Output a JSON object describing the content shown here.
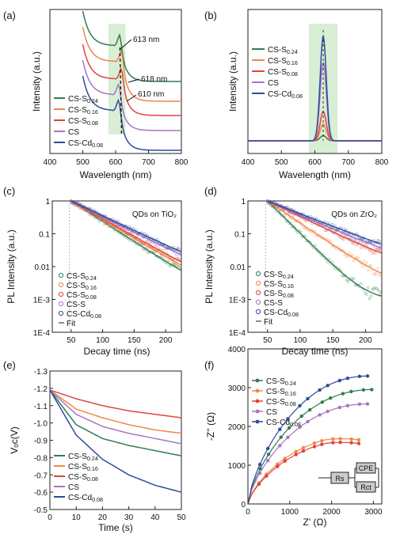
{
  "panels": {
    "a": {
      "letter": "(a)",
      "xlabel": "Wavelength (nm)",
      "ylabel": "Intensity (a.u.)"
    },
    "b": {
      "letter": "(b)",
      "xlabel": "Wavelength (nm)",
      "ylabel": "Intensity (a.u.)"
    },
    "c": {
      "letter": "(c)",
      "xlabel": "Decay time (ns)",
      "ylabel": "PL Intensity (a.u.)",
      "note": "QDs on TiO₂"
    },
    "d": {
      "letter": "(d)",
      "xlabel": "Decay time (ns)",
      "ylabel": "PL Intensity (a.u.)",
      "note": "QDs on ZrO₂"
    },
    "e": {
      "letter": "(e)",
      "xlabel": "Time (s)",
      "ylabel": "Vₒᴄ(V)"
    },
    "f": {
      "letter": "(f)",
      "xlabel": "Z' (Ω)",
      "ylabel": "-Z'' (Ω)"
    }
  },
  "colors": {
    "CS-S0.24": "#2e7d4f",
    "CS-S0.16": "#f0874a",
    "CS-S0.08": "#e0443a",
    "CS": "#a676c2",
    "CS-Cd0.08": "#2d4c9c",
    "CS-S": "#a676c2"
  },
  "chart_data": [
    {
      "panel": "a",
      "type": "line",
      "xlabel": "Wavelength (nm)",
      "ylabel": "Intensity (a.u.)",
      "xlim": [
        400,
        800
      ],
      "xticks": [
        400,
        500,
        600,
        700,
        800
      ],
      "annotations": [
        "613 nm",
        "618 nm",
        "610 nm"
      ],
      "legend": [
        "CS-S0.24",
        "CS-S0.16",
        "CS-S0.08",
        "CS",
        "CS-Cd0.08"
      ],
      "series": [
        {
          "name": "CS-S0.24",
          "offset": 3.0,
          "peak": 613
        },
        {
          "name": "CS-S0.16",
          "offset": 2.4,
          "peak": 618
        },
        {
          "name": "CS-S0.08",
          "offset": 1.8,
          "peak": 618
        },
        {
          "name": "CS",
          "offset": 1.2,
          "peak": 610
        },
        {
          "name": "CS-Cd0.08",
          "offset": 0.6,
          "peak": 610
        }
      ]
    },
    {
      "panel": "b",
      "type": "line",
      "xlabel": "Wavelength (nm)",
      "ylabel": "Intensity (a.u.)",
      "xlim": [
        400,
        800
      ],
      "xticks": [
        400,
        500,
        600,
        700,
        800
      ],
      "legend": [
        "CS-S0.24",
        "CS-S0.16",
        "CS-S0.08",
        "CS",
        "CS-Cd0.08"
      ],
      "series": [
        {
          "name": "CS-S0.24",
          "peak": 625,
          "height": 0.05
        },
        {
          "name": "CS-S0.16",
          "peak": 625,
          "height": 0.16
        },
        {
          "name": "CS-S0.08",
          "peak": 625,
          "height": 0.28
        },
        {
          "name": "CS",
          "peak": 625,
          "height": 0.75
        },
        {
          "name": "CS-Cd0.08",
          "peak": 625,
          "height": 1.0
        }
      ]
    },
    {
      "panel": "c",
      "type": "scatter",
      "yscale": "log",
      "xlabel": "Decay time (ns)",
      "ylabel": "PL Intensity (a.u.)",
      "xlim": [
        20,
        225
      ],
      "ylim": [
        0.0001,
        1
      ],
      "xticks": [
        50,
        100,
        150,
        200
      ],
      "yticks": [
        1,
        0.1,
        0.01,
        0.001,
        0.0001
      ],
      "ytick_labels": [
        "1",
        "0.1",
        "0.01",
        "1E-3",
        "1E-4"
      ],
      "legend": [
        "CS-S0.24",
        "CS-S0.16",
        "CS-S0.08",
        "CS-S",
        "CS-Cd0.08",
        "Fit"
      ],
      "series": [
        {
          "name": "CS-S0.24",
          "tau": 35,
          "floor": 0.0008
        },
        {
          "name": "CS-S0.16",
          "tau": 38,
          "floor": 0.001
        },
        {
          "name": "CS-S0.08",
          "tau": 40,
          "floor": 0.0012
        },
        {
          "name": "CS-S",
          "tau": 45,
          "floor": 0.0025
        },
        {
          "name": "CS-Cd0.08",
          "tau": 48,
          "floor": 0.002
        }
      ]
    },
    {
      "panel": "d",
      "type": "scatter",
      "yscale": "log",
      "xlabel": "Decay time (ns)",
      "ylabel": "PL Intensity (a.u.)",
      "xlim": [
        20,
        225
      ],
      "ylim": [
        0.0001,
        1
      ],
      "xticks": [
        50,
        100,
        150,
        200
      ],
      "yticks": [
        1,
        0.1,
        0.01,
        0.001,
        0.0001
      ],
      "ytick_labels": [
        "1",
        "0.1",
        "0.01",
        "1E-3",
        "1E-4"
      ],
      "legend": [
        "CS-S0.24",
        "CS-S0.16",
        "CS-S0.08",
        "CS-S",
        "CS-Cd0.08",
        "Fit"
      ],
      "series": [
        {
          "name": "CS-S0.24",
          "tau": 22,
          "floor": 0.0009
        },
        {
          "name": "CS-S0.16",
          "tau": 32,
          "floor": 0.002
        },
        {
          "name": "CS-S0.08",
          "tau": 45,
          "floor": 0.005
        },
        {
          "name": "CS-S",
          "tau": 50,
          "floor": 0.006
        },
        {
          "name": "CS-Cd0.08",
          "tau": 55,
          "floor": 0.0065
        }
      ]
    },
    {
      "panel": "e",
      "type": "line",
      "xlabel": "Time (s)",
      "ylabel": "Voc(V)",
      "xlim": [
        0,
        50
      ],
      "ylim": [
        -1.3,
        -0.5
      ],
      "xticks": [
        0,
        10,
        20,
        30,
        40,
        50
      ],
      "yticks": [
        -1.3,
        -1.2,
        -1.1,
        -1.0,
        -0.9,
        -0.8,
        -0.7,
        -0.6,
        -0.5
      ],
      "legend": [
        "CS-S0.24",
        "CS-S0.16",
        "CS-S0.08",
        "CS",
        "CS-Cd0.08"
      ],
      "series": [
        {
          "name": "CS-S0.24",
          "x": [
            0,
            10,
            20,
            30,
            40,
            50
          ],
          "y": [
            -1.19,
            -0.99,
            -0.91,
            -0.87,
            -0.84,
            -0.81
          ]
        },
        {
          "name": "CS-S0.16",
          "x": [
            0,
            10,
            20,
            30,
            40,
            50
          ],
          "y": [
            -1.19,
            -1.08,
            -1.03,
            -0.99,
            -0.96,
            -0.94
          ]
        },
        {
          "name": "CS-S0.08",
          "x": [
            0,
            10,
            20,
            30,
            40,
            50
          ],
          "y": [
            -1.19,
            -1.14,
            -1.1,
            -1.07,
            -1.05,
            -1.03
          ]
        },
        {
          "name": "CS",
          "x": [
            0,
            10,
            20,
            30,
            40,
            50
          ],
          "y": [
            -1.19,
            -1.05,
            -0.98,
            -0.94,
            -0.91,
            -0.88
          ]
        },
        {
          "name": "CS-Cd0.08",
          "x": [
            0,
            10,
            20,
            30,
            40,
            50
          ],
          "y": [
            -1.19,
            -0.93,
            -0.79,
            -0.7,
            -0.64,
            -0.6
          ]
        }
      ]
    },
    {
      "panel": "f",
      "type": "scatter",
      "xlabel": "Z' (Ω)",
      "ylabel": "-Z'' (Ω)",
      "xlim": [
        0,
        3200
      ],
      "ylim": [
        0,
        4000
      ],
      "xticks": [
        0,
        1000,
        2000,
        3000
      ],
      "yticks": [
        0,
        1000,
        2000,
        3000,
        4000
      ],
      "legend": [
        "CS-S0.24",
        "CS-S0.16",
        "CS-S0.08",
        "CS",
        "CS-Cd0.08"
      ],
      "inset": {
        "rs": "Rs",
        "cpe": "CPE",
        "rct": "Rct"
      },
      "series": [
        {
          "name": "CS-S0.24",
          "x_end": 2960,
          "y_end": 2950,
          "max_y": 2950
        },
        {
          "name": "CS-S0.16",
          "x_end": 2650,
          "y_end": 1650,
          "max_y": 1760
        },
        {
          "name": "CS-S0.08",
          "x_end": 2650,
          "y_end": 1600,
          "max_y": 1660
        },
        {
          "name": "CS",
          "x_end": 2860,
          "y_end": 2580,
          "max_y": 2580
        },
        {
          "name": "CS-Cd0.08",
          "x_end": 2860,
          "y_end": 3300,
          "max_y": 3300
        }
      ]
    }
  ]
}
